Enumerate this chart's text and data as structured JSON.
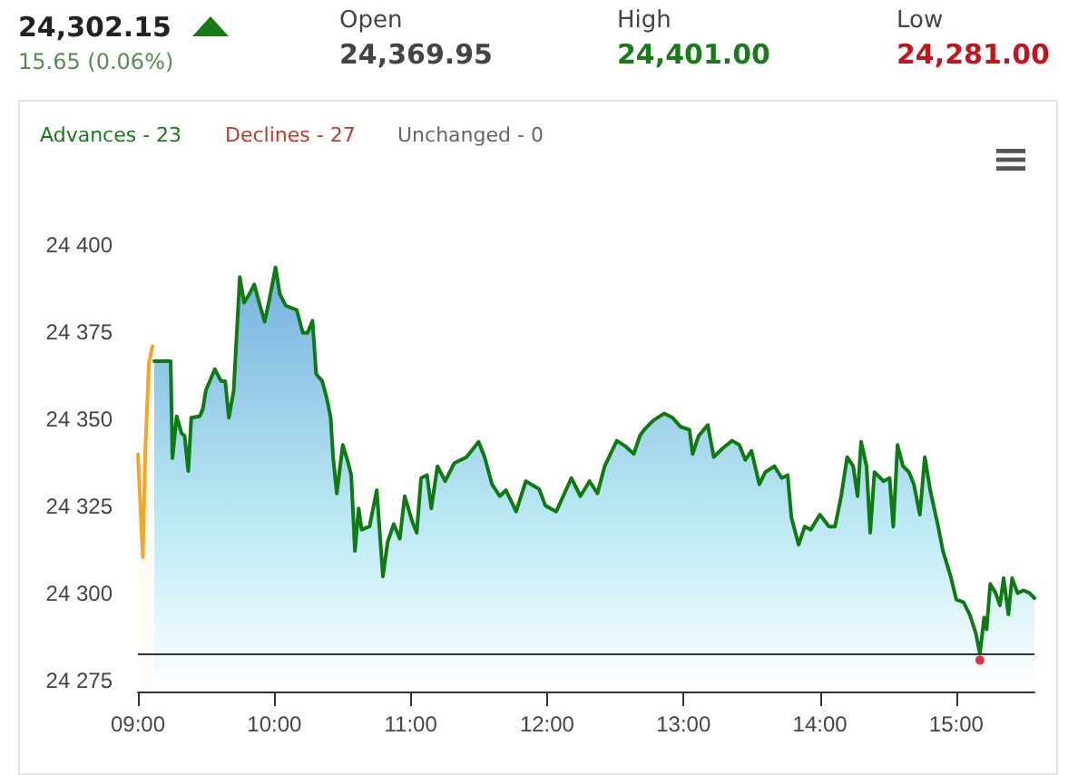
{
  "chart_data": {
    "type": "area",
    "title": "24,302.15",
    "subtitle": "15.65 (0.06%)",
    "annotations": [
      "Open",
      "24,369.95",
      "High",
      "24,401.00",
      "Low",
      "24,281.00",
      "Advances - 23",
      "Declines - 27",
      "Unchanged - 0"
    ],
    "xlim": [
      9,
      15.573
    ],
    "ylim": [
      24272,
      24400
    ],
    "xticks": [
      {
        "value": 9,
        "label": "09:00"
      },
      {
        "value": 10,
        "label": "10:00"
      },
      {
        "value": 11,
        "label": "11:00"
      },
      {
        "value": 12,
        "label": "12:00"
      },
      {
        "value": 13,
        "label": "13:00"
      },
      {
        "value": 14,
        "label": "14:00"
      },
      {
        "value": 15,
        "label": "15:00"
      }
    ],
    "yticks": [
      {
        "value": 24275,
        "label": "24 275"
      },
      {
        "value": 24300,
        "label": "24 300"
      },
      {
        "value": 24325,
        "label": "24 325"
      },
      {
        "value": 24350,
        "label": "24 350"
      },
      {
        "value": 24375,
        "label": "24 375"
      },
      {
        "value": 24400,
        "label": "24 400"
      }
    ],
    "grid": false,
    "marker": "none",
    "line_style": "solid",
    "ref_lines": [
      {
        "axis": "y",
        "value": 24283,
        "color": "#333333"
      }
    ],
    "series": [
      {
        "color": "#f5a623",
        "x": [
          9.0,
          9.036,
          9.053,
          9.08,
          9.107
        ],
        "values": [
          24340,
          24310.6,
          24340,
          24366,
          24371
        ]
      },
      {
        "color": "#0f7a14",
        "x": [
          9.12,
          9.24,
          9.253,
          9.284,
          9.32,
          9.342,
          9.369,
          9.391,
          9.453,
          9.476,
          9.498,
          9.564,
          9.609,
          9.64,
          9.667,
          9.702,
          9.747,
          9.778,
          9.818,
          9.853,
          9.889,
          9.929,
          9.964,
          10.009,
          10.04,
          10.084,
          10.164,
          10.209,
          10.244,
          10.28,
          10.307,
          10.351,
          10.387,
          10.413,
          10.431,
          10.458,
          10.502,
          10.542,
          10.564,
          10.591,
          10.618,
          10.64,
          10.698,
          10.751,
          10.796,
          10.831,
          10.876,
          10.92,
          10.956,
          11.009,
          11.044,
          11.076,
          11.12,
          11.151,
          11.196,
          11.253,
          11.32,
          11.409,
          11.498,
          11.542,
          11.596,
          11.653,
          11.698,
          11.773,
          11.844,
          11.942,
          11.987,
          12.067,
          12.178,
          12.244,
          12.311,
          12.369,
          12.422,
          12.511,
          12.578,
          12.636,
          12.68,
          12.711,
          12.778,
          12.858,
          12.92,
          12.978,
          13.044,
          13.067,
          13.111,
          13.178,
          13.222,
          13.289,
          13.356,
          13.409,
          13.453,
          13.498,
          13.556,
          13.6,
          13.667,
          13.72,
          13.764,
          13.791,
          13.844,
          13.889,
          13.933,
          14.0,
          14.067,
          14.111,
          14.156,
          14.2,
          14.244,
          14.276,
          14.302,
          14.342,
          14.369,
          14.4,
          14.467,
          14.511,
          14.538,
          14.569,
          14.609,
          14.653,
          14.689,
          14.733,
          14.769,
          14.809,
          14.867,
          14.902,
          14.956,
          15.0,
          15.053,
          15.098,
          15.142,
          15.173,
          15.204,
          15.222,
          15.249,
          15.289,
          15.32,
          15.347,
          15.382,
          15.409,
          15.449,
          15.493,
          15.538,
          15.573
        ],
        "values": [
          24366.7,
          24366.7,
          24338.9,
          24350.9,
          24346,
          24345.3,
          24335.2,
          24350.5,
          24350.9,
          24353,
          24358.3,
          24364.4,
          24361,
          24361,
          24350.5,
          24358.3,
          24390.8,
          24383.5,
          24386,
          24388.7,
          24383.5,
          24378,
          24384.4,
          24393.6,
          24386,
          24382.6,
          24381.4,
          24374.8,
          24374.8,
          24378.3,
          24363,
          24361,
          24355.7,
          24350.5,
          24339.2,
          24328.8,
          24342.7,
          24337.5,
          24334,
          24312.3,
          24324.5,
          24318.4,
          24319.3,
          24329.7,
          24305,
          24314.9,
          24320,
          24315.8,
          24328,
          24321,
          24317.5,
          24333.2,
          24334,
          24324.5,
          24336.6,
          24332.3,
          24337.5,
          24339.2,
          24343.6,
          24339.2,
          24331.4,
          24328,
          24329.7,
          24323.6,
          24332.3,
          24330,
          24325.3,
          24323.6,
          24333.2,
          24328,
          24332.3,
          24328.8,
          24336.6,
          24343.9,
          24342.2,
          24340.1,
          24345.3,
          24347,
          24349.7,
          24351.7,
          24350.5,
          24347.9,
          24347,
          24340.1,
          24345.3,
          24348.4,
          24339.2,
          24341.8,
          24343.9,
          24342.7,
          24338.4,
          24341,
          24331.4,
          24334.9,
          24336.6,
          24333.2,
          24334,
          24321.9,
          24314.1,
          24319.3,
          24318.4,
          24322.7,
          24319.3,
          24319.3,
          24328,
          24339.2,
          24336.6,
          24328,
          24343.6,
          24336.6,
          24317.5,
          24334.9,
          24332.3,
          24333.2,
          24319.3,
          24342.7,
          24336.6,
          24334.9,
          24331.4,
          24322.7,
          24339.2,
          24329.7,
          24319.3,
          24312.3,
          24305.4,
          24298.4,
          24297.6,
          24294.1,
          24288.9,
          24282.8,
          24293.2,
          24289.8,
          24302.8,
          24300.2,
          24296.7,
          24304.5,
          24294.1,
          24304.5,
          24300.2,
          24301,
          24300.2,
          24298.8
        ]
      },
      {
        "type": "scatter",
        "marker": "circle",
        "color": "#d0021b",
        "x": [
          15.173
        ],
        "values": [
          24281
        ]
      }
    ]
  }
}
